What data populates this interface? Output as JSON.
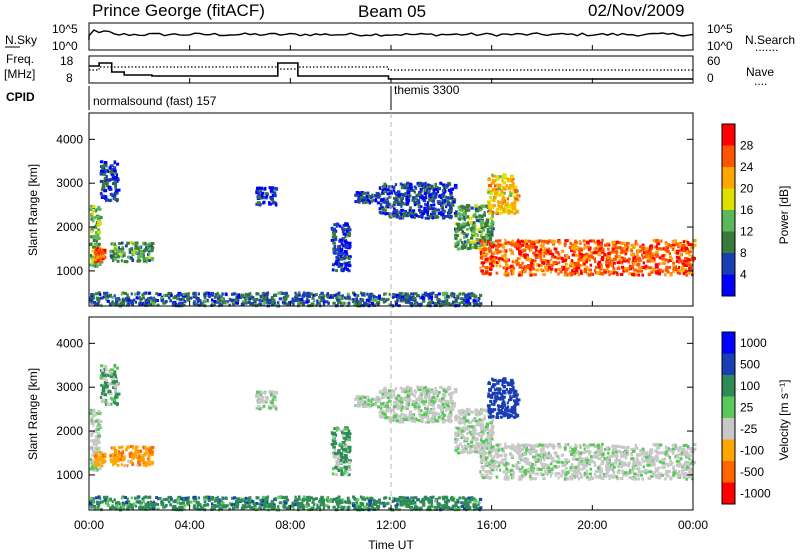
{
  "header": {
    "station": "Prince George (fitACF)",
    "beam": "Beam 05",
    "date": "02/Nov/2009"
  },
  "nsky_panel": {
    "left_label": "N.Sky",
    "left_ticks": [
      "10^5",
      "10^0"
    ],
    "right_ticks": [
      "10^5",
      "10^0"
    ],
    "right_label": "N.Search",
    "right_label_marker": "......."
  },
  "freq_panel": {
    "left_label_line1": "Freq.",
    "left_label_line2": "[MHz]",
    "left_ticks": [
      "18",
      "8"
    ],
    "right_ticks": [
      "60",
      "0"
    ],
    "right_label": "Nave",
    "right_label_marker": "....",
    "freq_range_mhz": [
      8,
      18
    ],
    "nave_range": [
      0,
      60
    ]
  },
  "cpid_panel": {
    "label": "CPID",
    "programs": [
      {
        "name": "normalsound (fast) 157",
        "start_hour": 0
      },
      {
        "name": "themis 3300",
        "start_hour": 12
      }
    ]
  },
  "time_axis": {
    "xlabel": "Time UT",
    "ticks": [
      "00:00",
      "04:00",
      "08:00",
      "12:00",
      "16:00",
      "20:00",
      "00:00"
    ]
  },
  "power_panel": {
    "ylabel": "Slant Range [km]",
    "yticks": [
      "4000",
      "3000",
      "2000",
      "1000"
    ],
    "colorbar_label": "Power [dB]",
    "colorbar_ticks": [
      "28",
      "24",
      "20",
      "16",
      "12",
      "8",
      "4"
    ],
    "colors": [
      "#0000ff",
      "#1a3fb5",
      "#3a7a3a",
      "#5ab85a",
      "#e0e000",
      "#ffa500",
      "#ff5500",
      "#ff0000"
    ]
  },
  "velocity_panel": {
    "ylabel": "Slant Range [km]",
    "yticks": [
      "4000",
      "3000",
      "2000",
      "1000"
    ],
    "colorbar_label": "Velocity [m s⁻¹]",
    "colorbar_ticks": [
      "1000",
      "500",
      "100",
      "25",
      "-25",
      "-100",
      "-500",
      "-1000"
    ],
    "colors": [
      "#0000ff",
      "#1a3fb5",
      "#2e8b57",
      "#5ac85a",
      "#c8c8c8",
      "#ffa500",
      "#ff6600",
      "#ff0000"
    ]
  },
  "chart_data": {
    "type": "heatmap",
    "title": "Prince George (fitACF)",
    "xlabel": "Time UT",
    "ylabel": "Slant Range [km]",
    "x_range_hours": [
      0,
      24
    ],
    "y_range_km": [
      200,
      4600
    ],
    "power_scale_db": [
      0,
      32
    ],
    "velocity_scale_ms": [
      -1000,
      1000
    ],
    "regions": [
      {
        "t": [
          0.0,
          0.4
        ],
        "r": [
          1100,
          2500
        ],
        "power": 14,
        "velocity": 0
      },
      {
        "t": [
          0.8,
          2.5
        ],
        "r": [
          1200,
          1650
        ],
        "power": 12,
        "velocity": -80
      },
      {
        "t": [
          0.2,
          0.6
        ],
        "r": [
          1200,
          1500
        ],
        "power": 26,
        "velocity": -60
      },
      {
        "t": [
          0.4,
          1.1
        ],
        "r": [
          2600,
          3500
        ],
        "power": 6,
        "velocity": 20
      },
      {
        "t": [
          6.6,
          7.4
        ],
        "r": [
          2500,
          2900
        ],
        "power": 5,
        "velocity": 0
      },
      {
        "t": [
          9.6,
          10.3
        ],
        "r": [
          1000,
          2100
        ],
        "power": 5,
        "velocity": 30
      },
      {
        "t": [
          10.5,
          11.5
        ],
        "r": [
          2550,
          2800
        ],
        "power": 5,
        "velocity": 0
      },
      {
        "t": [
          11.5,
          14.5
        ],
        "r": [
          2200,
          3000
        ],
        "power": 6,
        "velocity": 0
      },
      {
        "t": [
          14.5,
          16.0
        ],
        "r": [
          1500,
          2500
        ],
        "power": 12,
        "velocity": 0
      },
      {
        "t": [
          15.5,
          24.0
        ],
        "r": [
          900,
          1700
        ],
        "power": 26,
        "velocity": 0
      },
      {
        "t": [
          15.8,
          17.0
        ],
        "r": [
          2300,
          3200
        ],
        "power": 20,
        "velocity": 250
      },
      {
        "t": [
          0.0,
          15.5
        ],
        "r": [
          200,
          500
        ],
        "power": 8,
        "velocity": 60
      }
    ]
  }
}
